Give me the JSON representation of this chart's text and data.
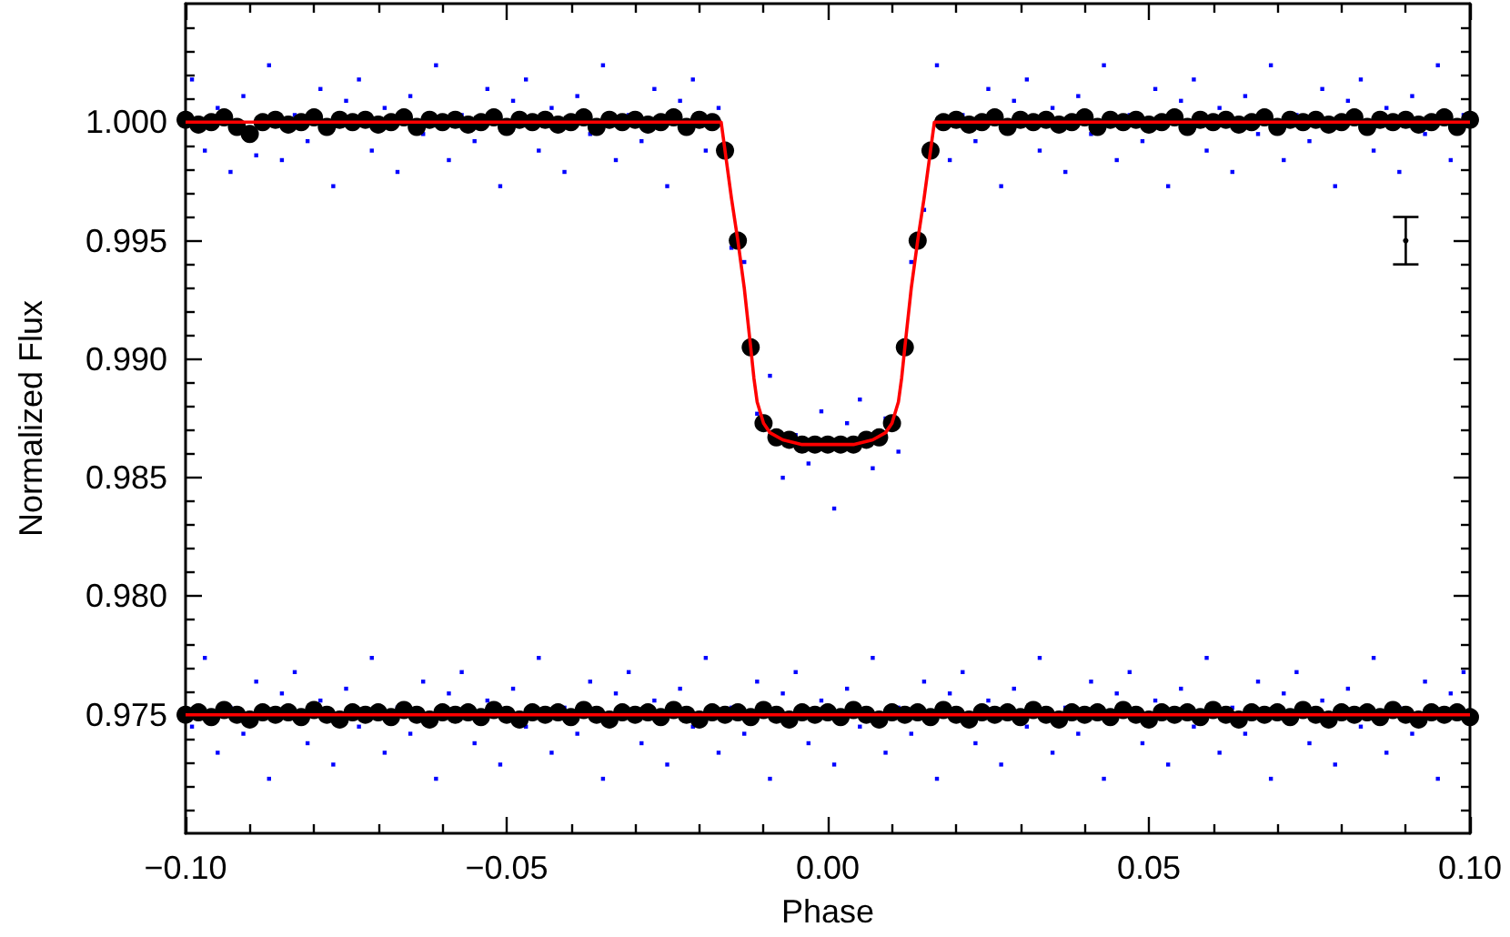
{
  "chart_data": {
    "type": "scatter",
    "xlabel": "Phase",
    "ylabel": "Normalized Flux",
    "xlim": [
      -0.1,
      0.1
    ],
    "ylim": [
      0.97,
      1.005
    ],
    "xticks": [
      {
        "value": -0.1,
        "label": "−0.10"
      },
      {
        "value": -0.09,
        "label": null
      },
      {
        "value": -0.08,
        "label": null
      },
      {
        "value": -0.07,
        "label": null
      },
      {
        "value": -0.06,
        "label": null
      },
      {
        "value": -0.05,
        "label": "−0.05"
      },
      {
        "value": -0.04,
        "label": null
      },
      {
        "value": -0.03,
        "label": null
      },
      {
        "value": -0.02,
        "label": null
      },
      {
        "value": -0.01,
        "label": null
      },
      {
        "value": 0,
        "label": "0.00"
      },
      {
        "value": 0.01,
        "label": null
      },
      {
        "value": 0.02,
        "label": null
      },
      {
        "value": 0.03,
        "label": null
      },
      {
        "value": 0.04,
        "label": null
      },
      {
        "value": 0.05,
        "label": "0.05"
      },
      {
        "value": 0.06,
        "label": null
      },
      {
        "value": 0.07,
        "label": null
      },
      {
        "value": 0.08,
        "label": null
      },
      {
        "value": 0.09,
        "label": null
      },
      {
        "value": 0.1,
        "label": "0.10"
      }
    ],
    "yticks": [
      {
        "value": 0.971,
        "label": null
      },
      {
        "value": 0.972,
        "label": null
      },
      {
        "value": 0.973,
        "label": null
      },
      {
        "value": 0.974,
        "label": null
      },
      {
        "value": 0.975,
        "label": "0.975"
      },
      {
        "value": 0.976,
        "label": null
      },
      {
        "value": 0.977,
        "label": null
      },
      {
        "value": 0.978,
        "label": null
      },
      {
        "value": 0.979,
        "label": null
      },
      {
        "value": 0.98,
        "label": "0.980"
      },
      {
        "value": 0.981,
        "label": null
      },
      {
        "value": 0.982,
        "label": null
      },
      {
        "value": 0.983,
        "label": null
      },
      {
        "value": 0.984,
        "label": null
      },
      {
        "value": 0.985,
        "label": "0.985"
      },
      {
        "value": 0.986,
        "label": null
      },
      {
        "value": 0.987,
        "label": null
      },
      {
        "value": 0.988,
        "label": null
      },
      {
        "value": 0.989,
        "label": null
      },
      {
        "value": 0.99,
        "label": "0.990"
      },
      {
        "value": 0.991,
        "label": null
      },
      {
        "value": 0.992,
        "label": null
      },
      {
        "value": 0.993,
        "label": null
      },
      {
        "value": 0.994,
        "label": null
      },
      {
        "value": 0.995,
        "label": "0.995"
      },
      {
        "value": 0.996,
        "label": null
      },
      {
        "value": 0.997,
        "label": null
      },
      {
        "value": 0.998,
        "label": null
      },
      {
        "value": 0.999,
        "label": null
      },
      {
        "value": 1.0,
        "label": "1.000"
      },
      {
        "value": 1.001,
        "label": null
      },
      {
        "value": 1.002,
        "label": null
      },
      {
        "value": 1.003,
        "label": null
      },
      {
        "value": 1.004,
        "label": null
      }
    ],
    "series": [
      {
        "marker": "square",
        "color": "#0000ff",
        "x": [
          -0.099,
          -0.097,
          -0.095,
          -0.093,
          -0.091,
          -0.089,
          -0.087,
          -0.085,
          -0.083,
          -0.081,
          -0.079,
          -0.077,
          -0.075,
          -0.073,
          -0.071,
          -0.069,
          -0.067,
          -0.065,
          -0.063,
          -0.061,
          -0.059,
          -0.057,
          -0.055,
          -0.053,
          -0.051,
          -0.049,
          -0.047,
          -0.045,
          -0.043,
          -0.041,
          -0.039,
          -0.037,
          -0.035,
          -0.033,
          -0.031,
          -0.029,
          -0.027,
          -0.025,
          -0.023,
          -0.021,
          -0.019,
          -0.017,
          -0.015,
          -0.013,
          -0.011,
          -0.009,
          -0.007,
          -0.005,
          -0.003,
          -0.001,
          0.001,
          0.003,
          0.005,
          0.007,
          0.009,
          0.011,
          0.013,
          0.015,
          0.017,
          0.019,
          0.021,
          0.023,
          0.025,
          0.027,
          0.029,
          0.031,
          0.033,
          0.035,
          0.037,
          0.039,
          0.041,
          0.043,
          0.045,
          0.047,
          0.049,
          0.051,
          0.053,
          0.055,
          0.057,
          0.059,
          0.061,
          0.063,
          0.065,
          0.067,
          0.069,
          0.071,
          0.073,
          0.075,
          0.077,
          0.079,
          0.081,
          0.083,
          0.085,
          0.087,
          0.089,
          0.091,
          0.093,
          0.095,
          0.097,
          0.099
        ],
        "values": [
          1.0018,
          0.9988,
          1.0006,
          0.9979,
          1.0011,
          0.9986,
          1.0024,
          0.9984,
          1.0003,
          0.9992,
          1.0014,
          0.9973,
          1.0009,
          1.0018,
          0.9988,
          1.0006,
          0.9979,
          1.0011,
          0.9995,
          1.0024,
          0.9984,
          1.0003,
          0.9992,
          1.0014,
          0.9973,
          1.0009,
          1.0018,
          0.9988,
          1.0006,
          0.9979,
          1.0011,
          0.9995,
          1.0024,
          0.9984,
          1.0003,
          0.9992,
          1.0014,
          0.9973,
          1.0009,
          1.0018,
          0.9988,
          1.0006,
          0.9947,
          0.9941,
          0.9877,
          0.9893,
          0.985,
          0.9868,
          0.9856,
          0.9878,
          0.9837,
          0.9873,
          0.9883,
          0.9854,
          0.9875,
          0.9861,
          0.9941,
          0.9963,
          1.0024,
          0.9984,
          1.0003,
          0.9992,
          1.0014,
          0.9973,
          1.0009,
          1.0018,
          0.9988,
          1.0006,
          0.9979,
          1.0011,
          0.9995,
          1.0024,
          0.9984,
          1.0003,
          0.9992,
          1.0014,
          0.9973,
          1.0009,
          1.0018,
          0.9988,
          1.0006,
          0.9979,
          1.0011,
          0.9995,
          1.0024,
          0.9984,
          1.0003,
          0.9992,
          1.0014,
          0.9973,
          1.0009,
          1.0018,
          0.9988,
          1.0006,
          0.9979,
          1.0011,
          0.9995,
          1.0024,
          0.9984,
          1.0003
        ]
      },
      {
        "type": "scatter",
        "marker": "square",
        "color": "#0000ff",
        "x": [
          -0.099,
          -0.097,
          -0.095,
          -0.093,
          -0.091,
          -0.089,
          -0.087,
          -0.085,
          -0.083,
          -0.081,
          -0.079,
          -0.077,
          -0.075,
          -0.073,
          -0.071,
          -0.069,
          -0.067,
          -0.065,
          -0.063,
          -0.061,
          -0.059,
          -0.057,
          -0.055,
          -0.053,
          -0.051,
          -0.049,
          -0.047,
          -0.045,
          -0.043,
          -0.041,
          -0.039,
          -0.037,
          -0.035,
          -0.033,
          -0.031,
          -0.029,
          -0.027,
          -0.025,
          -0.023,
          -0.021,
          -0.019,
          -0.017,
          -0.015,
          -0.013,
          -0.011,
          -0.009,
          -0.007,
          -0.005,
          -0.003,
          -0.001,
          0.001,
          0.003,
          0.005,
          0.007,
          0.009,
          0.011,
          0.013,
          0.015,
          0.017,
          0.019,
          0.021,
          0.023,
          0.025,
          0.027,
          0.029,
          0.031,
          0.033,
          0.035,
          0.037,
          0.039,
          0.041,
          0.043,
          0.045,
          0.047,
          0.049,
          0.051,
          0.053,
          0.055,
          0.057,
          0.059,
          0.061,
          0.063,
          0.065,
          0.067,
          0.069,
          0.071,
          0.073,
          0.075,
          0.077,
          0.079,
          0.081,
          0.083,
          0.085,
          0.087,
          0.089,
          0.091,
          0.093,
          0.095,
          0.097,
          0.099
        ],
        "values": [
          0.9745,
          0.9774,
          0.9734,
          0.9753,
          0.9742,
          0.9764,
          0.9723,
          0.9759,
          0.9768,
          0.9738,
          0.9756,
          0.9729,
          0.9761,
          0.9745,
          0.9774,
          0.9734,
          0.9753,
          0.9742,
          0.9764,
          0.9723,
          0.9759,
          0.9768,
          0.9738,
          0.9756,
          0.9729,
          0.9761,
          0.9745,
          0.9774,
          0.9734,
          0.9753,
          0.9742,
          0.9764,
          0.9723,
          0.9759,
          0.9768,
          0.9738,
          0.9756,
          0.9729,
          0.9761,
          0.9745,
          0.9774,
          0.9734,
          0.9753,
          0.9742,
          0.9764,
          0.9723,
          0.9759,
          0.9768,
          0.9738,
          0.9756,
          0.9729,
          0.9761,
          0.9745,
          0.9774,
          0.9734,
          0.9753,
          0.9742,
          0.9764,
          0.9723,
          0.9759,
          0.9768,
          0.9738,
          0.9756,
          0.9729,
          0.9761,
          0.9745,
          0.9774,
          0.9734,
          0.9753,
          0.9742,
          0.9764,
          0.9723,
          0.9759,
          0.9768,
          0.9738,
          0.9756,
          0.9729,
          0.9761,
          0.9745,
          0.9774,
          0.9734,
          0.9753,
          0.9742,
          0.9764,
          0.9723,
          0.9759,
          0.9768,
          0.9738,
          0.9756,
          0.9729,
          0.9761,
          0.9745,
          0.9774,
          0.9734,
          0.9753,
          0.9742,
          0.9764,
          0.9723,
          0.9759,
          0.9768
        ]
      },
      {
        "type": "scatter",
        "marker": "circle",
        "color": "#000000",
        "x": [
          -0.1,
          -0.098,
          -0.096,
          -0.094,
          -0.092,
          -0.09,
          -0.088,
          -0.086,
          -0.084,
          -0.082,
          -0.08,
          -0.078,
          -0.076,
          -0.074,
          -0.072,
          -0.07,
          -0.068,
          -0.066,
          -0.064,
          -0.062,
          -0.06,
          -0.058,
          -0.056,
          -0.054,
          -0.052,
          -0.05,
          -0.048,
          -0.046,
          -0.044,
          -0.042,
          -0.04,
          -0.038,
          -0.036,
          -0.034,
          -0.032,
          -0.03,
          -0.028,
          -0.026,
          -0.024,
          -0.022,
          -0.02,
          -0.018,
          -0.016,
          -0.014,
          -0.012,
          -0.01,
          -0.008,
          -0.006,
          -0.004,
          -0.002,
          0,
          0.002,
          0.004,
          0.006,
          0.008,
          0.01,
          0.012,
          0.014,
          0.016,
          0.018,
          0.02,
          0.022,
          0.024,
          0.026,
          0.028,
          0.03,
          0.032,
          0.034,
          0.036,
          0.038,
          0.04,
          0.042,
          0.044,
          0.046,
          0.048,
          0.05,
          0.052,
          0.054,
          0.056,
          0.058,
          0.06,
          0.062,
          0.064,
          0.066,
          0.068,
          0.07,
          0.072,
          0.074,
          0.076,
          0.078,
          0.08,
          0.082,
          0.084,
          0.086,
          0.088,
          0.09,
          0.092,
          0.094,
          0.096,
          0.098,
          0.1
        ],
        "values": [
          1.0001,
          0.9999,
          1.0,
          1.0002,
          0.9998,
          0.9995,
          1.0,
          1.0001,
          0.9999,
          1.0,
          1.0002,
          0.9998,
          1.0001,
          1.0,
          1.0001,
          0.9999,
          1.0,
          1.0002,
          0.9998,
          1.0001,
          1.0,
          1.0001,
          0.9999,
          1.0,
          1.0002,
          0.9998,
          1.0001,
          1.0,
          1.0001,
          0.9999,
          1.0,
          1.0002,
          0.9998,
          1.0001,
          1.0,
          1.0001,
          0.9999,
          1.0,
          1.0002,
          0.9998,
          1.0001,
          1.0,
          0.9988,
          0.995,
          0.9905,
          0.9873,
          0.9867,
          0.9866,
          0.9864,
          0.9864,
          0.9864,
          0.9864,
          0.9864,
          0.9866,
          0.9867,
          0.9873,
          0.9905,
          0.995,
          0.9988,
          1.0,
          1.0001,
          0.9999,
          1.0,
          1.0002,
          0.9998,
          1.0001,
          1.0,
          1.0001,
          0.9999,
          1.0,
          1.0002,
          0.9998,
          1.0001,
          1.0,
          1.0001,
          0.9999,
          1.0,
          1.0002,
          0.9998,
          1.0001,
          1.0,
          1.0001,
          0.9999,
          1.0,
          1.0002,
          0.9998,
          1.0001,
          1.0,
          1.0001,
          0.9999,
          1.0,
          1.0002,
          0.9998,
          1.0001,
          1.0,
          1.0001,
          0.9999,
          1.0,
          1.0002,
          0.9998,
          1.0001
        ]
      },
      {
        "type": "scatter",
        "marker": "circle",
        "color": "#000000",
        "x": [
          -0.1,
          -0.098,
          -0.096,
          -0.094,
          -0.092,
          -0.09,
          -0.088,
          -0.086,
          -0.084,
          -0.082,
          -0.08,
          -0.078,
          -0.076,
          -0.074,
          -0.072,
          -0.07,
          -0.068,
          -0.066,
          -0.064,
          -0.062,
          -0.06,
          -0.058,
          -0.056,
          -0.054,
          -0.052,
          -0.05,
          -0.048,
          -0.046,
          -0.044,
          -0.042,
          -0.04,
          -0.038,
          -0.036,
          -0.034,
          -0.032,
          -0.03,
          -0.028,
          -0.026,
          -0.024,
          -0.022,
          -0.02,
          -0.018,
          -0.016,
          -0.014,
          -0.012,
          -0.01,
          -0.008,
          -0.006,
          -0.004,
          -0.002,
          0,
          0.002,
          0.004,
          0.006,
          0.008,
          0.01,
          0.012,
          0.014,
          0.016,
          0.018,
          0.02,
          0.022,
          0.024,
          0.026,
          0.028,
          0.03,
          0.032,
          0.034,
          0.036,
          0.038,
          0.04,
          0.042,
          0.044,
          0.046,
          0.048,
          0.05,
          0.052,
          0.054,
          0.056,
          0.058,
          0.06,
          0.062,
          0.064,
          0.066,
          0.068,
          0.07,
          0.072,
          0.074,
          0.076,
          0.078,
          0.08,
          0.082,
          0.084,
          0.086,
          0.088,
          0.09,
          0.092,
          0.094,
          0.096,
          0.098,
          0.1
        ],
        "values": [
          0.975,
          0.9751,
          0.9749,
          0.9752,
          0.975,
          0.9748,
          0.9751,
          0.975,
          0.9751,
          0.9749,
          0.9752,
          0.975,
          0.9748,
          0.9751,
          0.975,
          0.9751,
          0.9749,
          0.9752,
          0.975,
          0.9748,
          0.9751,
          0.975,
          0.9751,
          0.9749,
          0.9752,
          0.975,
          0.9748,
          0.9751,
          0.975,
          0.9751,
          0.9749,
          0.9752,
          0.975,
          0.9748,
          0.9751,
          0.975,
          0.9751,
          0.9749,
          0.9752,
          0.975,
          0.9748,
          0.9751,
          0.975,
          0.9751,
          0.9749,
          0.9752,
          0.975,
          0.9748,
          0.9751,
          0.975,
          0.9751,
          0.9749,
          0.9752,
          0.975,
          0.9748,
          0.9751,
          0.975,
          0.9751,
          0.9749,
          0.9752,
          0.975,
          0.9748,
          0.9751,
          0.975,
          0.9751,
          0.9749,
          0.9752,
          0.975,
          0.9748,
          0.9751,
          0.975,
          0.9751,
          0.9749,
          0.9752,
          0.975,
          0.9748,
          0.9751,
          0.975,
          0.9751,
          0.9749,
          0.9752,
          0.975,
          0.9748,
          0.9751,
          0.975,
          0.9751,
          0.9749,
          0.9752,
          0.975,
          0.9748,
          0.9751,
          0.975,
          0.9751,
          0.9749,
          0.9752,
          0.975,
          0.9748,
          0.9751,
          0.975,
          0.9751,
          0.9749
        ]
      },
      {
        "type": "line",
        "marker": "none",
        "color": "#ff0000",
        "x": [
          -0.1,
          -0.0166,
          -0.016,
          -0.015,
          -0.014,
          -0.013,
          -0.012,
          -0.0115,
          -0.011,
          -0.01,
          -0.009,
          -0.007,
          -0.004,
          0,
          0.004,
          0.007,
          0.009,
          0.01,
          0.011,
          0.0115,
          0.012,
          0.013,
          0.014,
          0.015,
          0.016,
          0.0166,
          0.1
        ],
        "values": [
          1.0,
          1.0,
          0.9988,
          0.9968,
          0.995,
          0.993,
          0.9905,
          0.9892,
          0.9882,
          0.9873,
          0.9869,
          0.9866,
          0.9864,
          0.9864,
          0.9864,
          0.9866,
          0.9869,
          0.9873,
          0.9882,
          0.9892,
          0.9905,
          0.993,
          0.995,
          0.9968,
          0.9988,
          1.0,
          1.0
        ]
      },
      {
        "type": "line",
        "marker": "none",
        "color": "#ff0000",
        "x": [
          -0.1,
          0.1
        ],
        "values": [
          0.975,
          0.975
        ]
      },
      {
        "type": "scatter",
        "marker": "none",
        "color": "#000000",
        "x": [
          0.09
        ],
        "values": [
          0.995
        ],
        "errors": [
          0.001
        ]
      }
    ]
  }
}
